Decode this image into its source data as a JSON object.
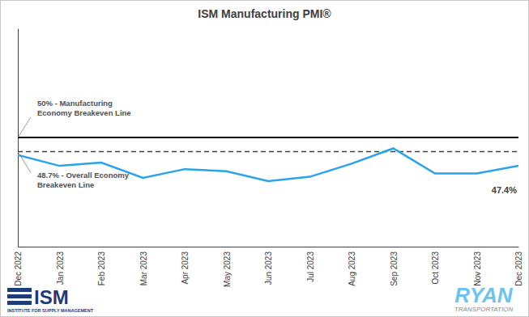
{
  "chart_data": {
    "type": "line",
    "title": "ISM Manufacturing PMI®",
    "categories": [
      "Dec 2022",
      "Jan 2023",
      "Feb 2023",
      "Mar 2023",
      "Apr 2023",
      "May 2023",
      "Jun 2023",
      "Jul 2023",
      "Aug 2023",
      "Sep 2023",
      "Oct 2023",
      "Nov 2023",
      "Dec 2023"
    ],
    "series": [
      {
        "name": "ISM Manufacturing PMI",
        "color": "#29a3ea",
        "values": [
          48.4,
          47.4,
          47.7,
          46.3,
          47.1,
          46.9,
          46.0,
          46.4,
          47.6,
          49.0,
          46.7,
          46.7,
          47.4
        ],
        "value_labels": [
          null,
          null,
          null,
          null,
          null,
          null,
          null,
          null,
          null,
          null,
          null,
          null,
          "47.4%"
        ]
      }
    ],
    "ylim": [
      40,
      60
    ],
    "tick_labels": "x",
    "reference_lines": [
      {
        "value": 50,
        "label": [
          "50% - Manufacturing",
          "Economy Breakeven Line"
        ],
        "line_style": "solid",
        "color": "#000000"
      },
      {
        "value": 48.7,
        "label": [
          "48.7% - Overall Economy",
          "Breakeven Line"
        ],
        "line_style": "dashed",
        "color": "#404040"
      }
    ],
    "logos": [
      {
        "title": "ISM",
        "subtitle": "INSTITUTE FOR SUPPLY MANAGEMENT",
        "color": "#1d3c78"
      },
      {
        "title": "RYAN",
        "subtitle": "TRANSPORTATION",
        "color": "#6cc3ee"
      }
    ]
  }
}
